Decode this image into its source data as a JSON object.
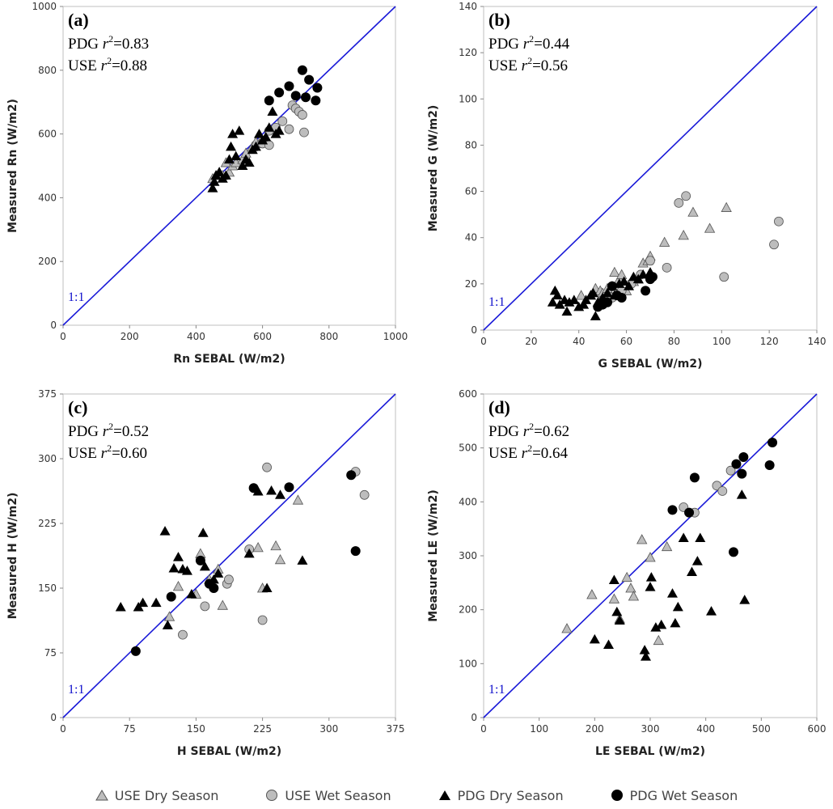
{
  "colors": {
    "line": "#1a1ad8",
    "use": "#bdbdbd",
    "pdg": "#000000",
    "use_stroke": "#555555"
  },
  "legend": [
    {
      "label": "USE Dry Season",
      "marker": "triangle-open-gray"
    },
    {
      "label": "USE Wet Season",
      "marker": "circle-open-gray"
    },
    {
      "label": "PDG Dry Season",
      "marker": "triangle-black"
    },
    {
      "label": "PDG Wet Season",
      "marker": "circle-black"
    }
  ],
  "chart_data": [
    {
      "type": "scatter",
      "panel": "(a)",
      "xlabel": "Rn SEBAL (W/m2)",
      "ylabel": "Measured Rn (W/m2)",
      "xlim": [
        0,
        1000
      ],
      "ylim": [
        0,
        1000
      ],
      "xticks": [
        0,
        200,
        400,
        600,
        800,
        1000
      ],
      "yticks": [
        0,
        200,
        400,
        600,
        800,
        1000
      ],
      "stats": [
        "PDG",
        "=0.83",
        "USE",
        "=0.88"
      ],
      "r_label": "r",
      "r_sup": "2",
      "one_to_one": "1:1",
      "series": [
        {
          "name": "USE Dry Season",
          "points": [
            [
              450,
              460
            ],
            [
              460,
              470
            ],
            [
              470,
              480
            ],
            [
              480,
              470
            ],
            [
              490,
              510
            ],
            [
              500,
              480
            ],
            [
              510,
              500
            ],
            [
              520,
              510
            ],
            [
              540,
              520
            ],
            [
              550,
              540
            ],
            [
              570,
              560
            ],
            [
              580,
              575
            ],
            [
              590,
              570
            ],
            [
              600,
              580
            ],
            [
              610,
              590
            ]
          ]
        },
        {
          "name": "USE Wet Season",
          "points": [
            [
              600,
              570
            ],
            [
              620,
              565
            ],
            [
              620,
              610
            ],
            [
              640,
              620
            ],
            [
              660,
              640
            ],
            [
              680,
              615
            ],
            [
              690,
              690
            ],
            [
              700,
              680
            ],
            [
              710,
              670
            ],
            [
              720,
              660
            ],
            [
              725,
              605
            ]
          ]
        },
        {
          "name": "PDG Dry Season",
          "points": [
            [
              450,
              430
            ],
            [
              455,
              450
            ],
            [
              460,
              470
            ],
            [
              470,
              480
            ],
            [
              480,
              460
            ],
            [
              490,
              470
            ],
            [
              500,
              520
            ],
            [
              505,
              560
            ],
            [
              510,
              600
            ],
            [
              520,
              530
            ],
            [
              530,
              610
            ],
            [
              540,
              500
            ],
            [
              550,
              520
            ],
            [
              560,
              510
            ],
            [
              570,
              550
            ],
            [
              580,
              560
            ],
            [
              590,
              600
            ],
            [
              600,
              580
            ],
            [
              610,
              590
            ],
            [
              620,
              620
            ],
            [
              630,
              670
            ],
            [
              640,
              600
            ],
            [
              650,
              610
            ]
          ]
        },
        {
          "name": "PDG Wet Season",
          "points": [
            [
              620,
              705
            ],
            [
              650,
              730
            ],
            [
              680,
              750
            ],
            [
              700,
              720
            ],
            [
              720,
              800
            ],
            [
              730,
              715
            ],
            [
              740,
              770
            ],
            [
              760,
              705
            ],
            [
              765,
              745
            ]
          ]
        }
      ]
    },
    {
      "type": "scatter",
      "panel": "(b)",
      "xlabel": "G SEBAL (W/m2)",
      "ylabel": "Measured G (W/m2)",
      "xlim": [
        0,
        140
      ],
      "ylim": [
        0,
        140
      ],
      "xticks": [
        0,
        20,
        40,
        60,
        80,
        100,
        120,
        140
      ],
      "yticks": [
        0,
        20,
        40,
        60,
        80,
        100,
        120,
        140
      ],
      "stats": [
        "PDG",
        "=0.44",
        "USE",
        "=0.56"
      ],
      "r_label": "r",
      "r_sup": "2",
      "one_to_one": "1:1",
      "series": [
        {
          "name": "USE Dry Season",
          "points": [
            [
              41,
              15
            ],
            [
              45,
              15
            ],
            [
              47,
              18
            ],
            [
              49,
              17
            ],
            [
              50,
              16
            ],
            [
              52,
              18
            ],
            [
              55,
              25
            ],
            [
              57,
              22
            ],
            [
              58,
              24
            ],
            [
              60,
              17
            ],
            [
              63,
              21
            ],
            [
              65,
              22
            ],
            [
              67,
              29
            ],
            [
              69,
              30
            ],
            [
              70,
              32
            ],
            [
              76,
              38
            ],
            [
              84,
              41
            ],
            [
              88,
              51
            ],
            [
              95,
              44
            ],
            [
              102,
              53
            ]
          ]
        },
        {
          "name": "USE Wet Season",
          "points": [
            [
              50,
              13
            ],
            [
              54,
              14
            ],
            [
              58,
              17
            ],
            [
              62,
              20
            ],
            [
              66,
              24
            ],
            [
              70,
              30
            ],
            [
              77,
              27
            ],
            [
              82,
              55
            ],
            [
              85,
              58
            ],
            [
              101,
              23
            ],
            [
              122,
              37
            ],
            [
              124,
              47
            ]
          ]
        },
        {
          "name": "PDG Dry Season",
          "points": [
            [
              29,
              12
            ],
            [
              30,
              17
            ],
            [
              31,
              15
            ],
            [
              32,
              11
            ],
            [
              34,
              13
            ],
            [
              35,
              8
            ],
            [
              36,
              12
            ],
            [
              38,
              13
            ],
            [
              40,
              10
            ],
            [
              42,
              11
            ],
            [
              43,
              13
            ],
            [
              45,
              15
            ],
            [
              46,
              16
            ],
            [
              47,
              6
            ],
            [
              48,
              12
            ],
            [
              50,
              14
            ],
            [
              52,
              16
            ],
            [
              54,
              19
            ],
            [
              55,
              15
            ],
            [
              57,
              20
            ],
            [
              59,
              21
            ],
            [
              61,
              19
            ],
            [
              63,
              23
            ],
            [
              65,
              22
            ],
            [
              67,
              24
            ],
            [
              70,
              25
            ]
          ]
        },
        {
          "name": "PDG Wet Season",
          "points": [
            [
              48,
              10
            ],
            [
              50,
              11
            ],
            [
              52,
              12
            ],
            [
              54,
              19
            ],
            [
              56,
              15
            ],
            [
              58,
              14
            ],
            [
              68,
              17
            ],
            [
              70,
              22
            ],
            [
              71,
              23
            ]
          ]
        }
      ]
    },
    {
      "type": "scatter",
      "panel": "(c)",
      "xlabel": "H SEBAL (W/m2)",
      "ylabel": "Measured H (W/m2)",
      "xlim": [
        0,
        375
      ],
      "ylim": [
        0,
        375
      ],
      "xticks": [
        0,
        75,
        150,
        225,
        300,
        375
      ],
      "yticks": [
        0,
        75,
        150,
        225,
        300,
        375
      ],
      "stats": [
        "PDG",
        "=0.52",
        "USE",
        "=0.60"
      ],
      "r_label": "r",
      "r_sup": "2",
      "one_to_one": "1:1",
      "series": [
        {
          "name": "USE Dry Season",
          "points": [
            [
              120,
              117
            ],
            [
              130,
              152
            ],
            [
              150,
              143
            ],
            [
              155,
              190
            ],
            [
              165,
              160
            ],
            [
              175,
              172
            ],
            [
              180,
              130
            ],
            [
              220,
              197
            ],
            [
              225,
              150
            ],
            [
              240,
              199
            ],
            [
              245,
              183
            ],
            [
              265,
              252
            ]
          ]
        },
        {
          "name": "USE Wet Season",
          "points": [
            [
              135,
              96
            ],
            [
              160,
              129
            ],
            [
              185,
              155
            ],
            [
              187,
              160
            ],
            [
              210,
              195
            ],
            [
              225,
              113
            ],
            [
              230,
              290
            ],
            [
              330,
              285
            ],
            [
              340,
              258
            ]
          ]
        },
        {
          "name": "PDG Dry Season",
          "points": [
            [
              65,
              128
            ],
            [
              85,
              128
            ],
            [
              90,
              133
            ],
            [
              105,
              133
            ],
            [
              115,
              216
            ],
            [
              118,
              107
            ],
            [
              125,
              173
            ],
            [
              130,
              186
            ],
            [
              135,
              172
            ],
            [
              140,
              170
            ],
            [
              145,
              143
            ],
            [
              158,
              214
            ],
            [
              160,
              175
            ],
            [
              170,
              160
            ],
            [
              175,
              167
            ],
            [
              210,
              190
            ],
            [
              220,
              262
            ],
            [
              230,
              150
            ],
            [
              235,
              263
            ],
            [
              245,
              258
            ],
            [
              270,
              182
            ]
          ]
        },
        {
          "name": "PDG Wet Season",
          "points": [
            [
              82,
              77
            ],
            [
              122,
              140
            ],
            [
              155,
              182
            ],
            [
              165,
              155
            ],
            [
              170,
              150
            ],
            [
              215,
              266
            ],
            [
              255,
              267
            ],
            [
              325,
              281
            ],
            [
              330,
              193
            ]
          ]
        }
      ]
    },
    {
      "type": "scatter",
      "panel": "(d)",
      "xlabel": "LE SEBAL (W/m2)",
      "ylabel": "Measured LE (W/m2)",
      "xlim": [
        0,
        600
      ],
      "ylim": [
        0,
        600
      ],
      "xticks": [
        0,
        100,
        200,
        300,
        400,
        500,
        600
      ],
      "yticks": [
        0,
        100,
        200,
        300,
        400,
        500,
        600
      ],
      "stats": [
        "PDG",
        "=0.62",
        "USE",
        "=0.64"
      ],
      "r_label": "r",
      "r_sup": "2",
      "one_to_one": "1:1",
      "series": [
        {
          "name": "USE Dry Season",
          "points": [
            [
              150,
              165
            ],
            [
              195,
              228
            ],
            [
              235,
              220
            ],
            [
              245,
              183
            ],
            [
              258,
              260
            ],
            [
              265,
              240
            ],
            [
              270,
              225
            ],
            [
              285,
              330
            ],
            [
              300,
              297
            ],
            [
              315,
              143
            ],
            [
              330,
              317
            ]
          ]
        },
        {
          "name": "USE Wet Season",
          "points": [
            [
              360,
              390
            ],
            [
              380,
              380
            ],
            [
              420,
              430
            ],
            [
              430,
              420
            ],
            [
              445,
              458
            ]
          ]
        },
        {
          "name": "PDG Dry Season",
          "points": [
            [
              200,
              145
            ],
            [
              225,
              135
            ],
            [
              235,
              255
            ],
            [
              240,
              196
            ],
            [
              245,
              180
            ],
            [
              290,
              125
            ],
            [
              292,
              113
            ],
            [
              300,
              242
            ],
            [
              302,
              260
            ],
            [
              310,
              167
            ],
            [
              320,
              172
            ],
            [
              340,
              230
            ],
            [
              345,
              175
            ],
            [
              350,
              205
            ],
            [
              360,
              333
            ],
            [
              375,
              270
            ],
            [
              385,
              290
            ],
            [
              390,
              333
            ],
            [
              410,
              197
            ],
            [
              465,
              413
            ],
            [
              470,
              218
            ]
          ]
        },
        {
          "name": "PDG Wet Season",
          "points": [
            [
              340,
              385
            ],
            [
              370,
              380
            ],
            [
              380,
              445
            ],
            [
              450,
              307
            ],
            [
              455,
              470
            ],
            [
              465,
              452
            ],
            [
              468,
              483
            ],
            [
              515,
              468
            ],
            [
              520,
              510
            ]
          ]
        }
      ]
    }
  ]
}
